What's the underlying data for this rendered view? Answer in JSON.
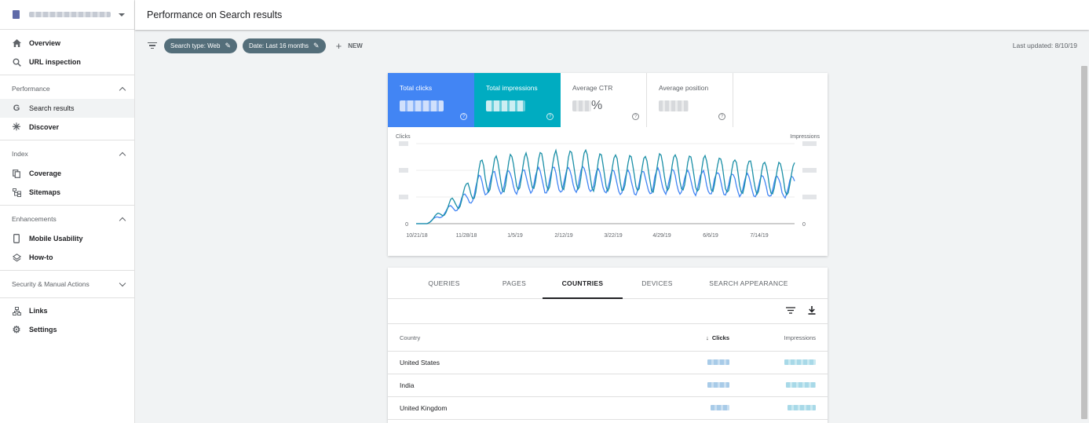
{
  "header": {
    "title": "Performance on Search results"
  },
  "sidebar": {
    "top_items": [
      {
        "label": "Overview",
        "icon": "home-icon"
      },
      {
        "label": "URL inspection",
        "icon": "search-icon"
      }
    ],
    "sections": [
      {
        "title": "Performance",
        "items": [
          {
            "label": "Search results",
            "icon": "google-g-icon",
            "active": true
          },
          {
            "label": "Discover",
            "icon": "asterisk-icon"
          }
        ]
      },
      {
        "title": "Index",
        "items": [
          {
            "label": "Coverage",
            "icon": "copy-icon"
          },
          {
            "label": "Sitemaps",
            "icon": "sitemap-icon"
          }
        ]
      },
      {
        "title": "Enhancements",
        "items": [
          {
            "label": "Mobile Usability",
            "icon": "phone-icon"
          },
          {
            "label": "How-to",
            "icon": "layers-icon"
          }
        ]
      },
      {
        "title": "Security & Manual Actions",
        "items": []
      }
    ],
    "bottom_items": [
      {
        "label": "Links",
        "icon": "links-icon"
      },
      {
        "label": "Settings",
        "icon": "gear-icon"
      }
    ]
  },
  "toolbar": {
    "chips": [
      "Search type: Web",
      "Date: Last 16 months"
    ],
    "new_label": "NEW",
    "last_updated": "Last updated: 8/10/19"
  },
  "metrics": [
    {
      "label": "Total clicks"
    },
    {
      "label": "Total impressions"
    },
    {
      "label": "Average CTR",
      "suffix": "%"
    },
    {
      "label": "Average position"
    }
  ],
  "chart_data": {
    "type": "line",
    "left_axis_label": "Clicks",
    "right_axis_label": "Impressions",
    "x_tick_labels": [
      "10/21/18",
      "11/28/18",
      "1/5/19",
      "2/12/19",
      "3/22/19",
      "4/29/19",
      "6/6/19",
      "7/14/19"
    ],
    "y_min_label": "0",
    "colors": {
      "clicks": "#4285f4",
      "impressions": "#1a8fa6"
    }
  },
  "table": {
    "tabs": [
      "QUERIES",
      "PAGES",
      "COUNTRIES",
      "DEVICES",
      "SEARCH APPEARANCE"
    ],
    "active_tab": "COUNTRIES",
    "columns": [
      "Country",
      "Clicks",
      "Impressions"
    ],
    "sort_indicator": "↓",
    "rows": [
      "United States",
      "India",
      "United Kingdom"
    ]
  }
}
